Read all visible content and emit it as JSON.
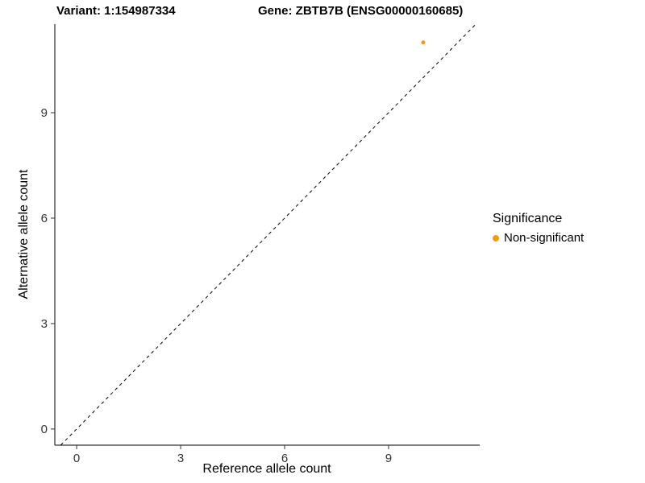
{
  "chart_data": {
    "type": "scatter",
    "title_left": "Variant: 1:154987334",
    "title_right": "Gene: ZBTB7B (ENSG00000160685)",
    "xlabel": "Reference allele count",
    "ylabel": "Alternative allele count",
    "xticks": [
      0,
      3,
      6,
      9
    ],
    "yticks": [
      0,
      3,
      6,
      9
    ],
    "xlim": [
      -0.63,
      11.63
    ],
    "ylim": [
      -0.46,
      11.52
    ],
    "identity_line": {
      "style": "dashed",
      "color": "#000000"
    },
    "points": [
      {
        "x": 10,
        "y": 11,
        "series": "Non-significant"
      }
    ],
    "legend": {
      "title": "Significance",
      "entries": [
        {
          "label": "Non-significant",
          "color": "#F39C12"
        }
      ]
    },
    "grid": "off",
    "background": "#ffffff"
  }
}
